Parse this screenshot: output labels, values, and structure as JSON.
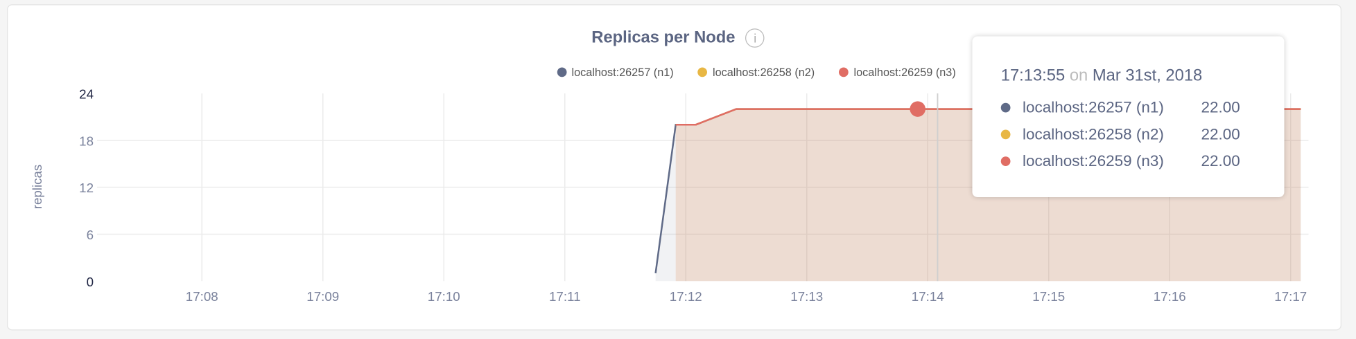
{
  "title": "Replicas per Node",
  "info_icon": "info-icon",
  "chart_data": {
    "type": "area",
    "title": "Replicas per Node",
    "ylabel": "replicas",
    "ylim": [
      0,
      24
    ],
    "yticks": [
      "0",
      "6",
      "12",
      "18",
      "24"
    ],
    "xticks": [
      "17:08",
      "17:09",
      "17:10",
      "17:11",
      "17:12",
      "17:13",
      "17:14",
      "17:15",
      "17:16",
      "17:17"
    ],
    "xlim": [
      "17:07:00",
      "17:17:10"
    ],
    "grid": true,
    "legend": "top",
    "series": [
      {
        "name": "localhost:26257 (n1)",
        "color": "#5f6a87",
        "points": [
          [
            "17:11:45",
            1
          ],
          [
            "17:11:55",
            20
          ],
          [
            "17:12:05",
            20
          ],
          [
            "17:12:25",
            22
          ],
          [
            "17:17:05",
            22
          ]
        ]
      },
      {
        "name": "localhost:26258 (n2)",
        "color": "#e8b744",
        "points": [
          [
            "17:11:55",
            20
          ],
          [
            "17:12:05",
            20
          ],
          [
            "17:12:25",
            22
          ],
          [
            "17:17:05",
            22
          ]
        ]
      },
      {
        "name": "localhost:26259 (n3)",
        "color": "#e06d64",
        "points": [
          [
            "17:11:55",
            20
          ],
          [
            "17:12:05",
            20
          ],
          [
            "17:12:25",
            22
          ],
          [
            "17:17:05",
            22
          ]
        ]
      }
    ],
    "hover": {
      "time": "17:13:55"
    }
  },
  "tooltip": {
    "time": "17:13:55",
    "on": "on",
    "date": "Mar 31st, 2018",
    "rows": [
      {
        "name": "localhost:26257 (n1)",
        "value": "22.00"
      },
      {
        "name": "localhost:26258 (n2)",
        "value": "22.00"
      },
      {
        "name": "localhost:26259 (n3)",
        "value": "22.00"
      }
    ]
  }
}
